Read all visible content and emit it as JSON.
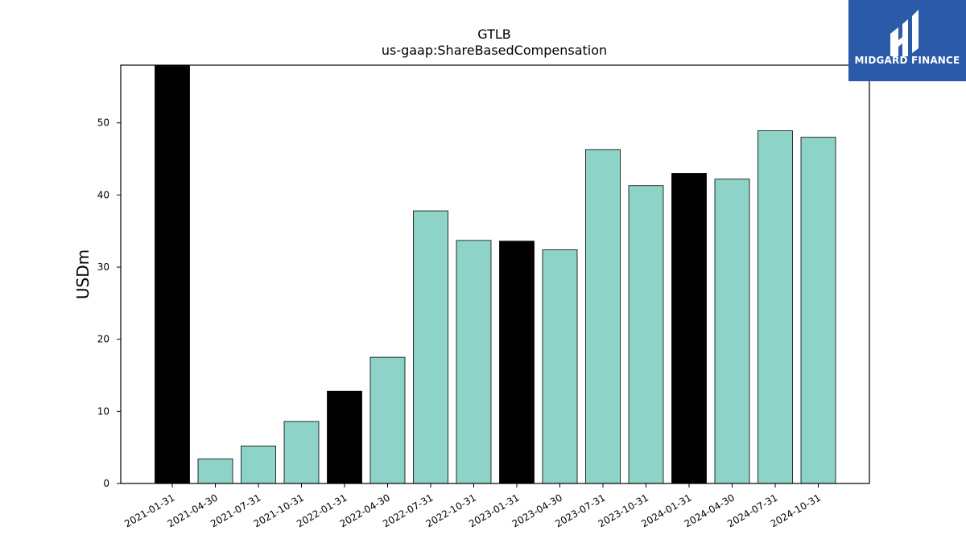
{
  "chart_data": {
    "type": "bar",
    "title": "GTLB",
    "subtitle": "us-gaap:ShareBasedCompensation",
    "ylabel": "USDm",
    "xlabel": "",
    "ylim": [
      0,
      58
    ],
    "yticks": [
      0,
      10,
      20,
      30,
      40,
      50
    ],
    "grid": false,
    "categories": [
      "2021-01-31",
      "2021-04-30",
      "2021-07-31",
      "2021-10-31",
      "2022-01-31",
      "2022-04-30",
      "2022-07-31",
      "2022-10-31",
      "2023-01-31",
      "2023-04-30",
      "2023-07-31",
      "2023-10-31",
      "2024-01-31",
      "2024-04-30",
      "2024-07-31",
      "2024-10-31"
    ],
    "values": [
      58.0,
      3.4,
      5.2,
      8.6,
      12.8,
      17.5,
      37.8,
      33.7,
      33.6,
      32.4,
      46.3,
      41.3,
      43.0,
      42.2,
      48.9,
      48.0
    ],
    "colors": [
      "#000000",
      "#8dd3c7",
      "#8dd3c7",
      "#8dd3c7",
      "#000000",
      "#8dd3c7",
      "#8dd3c7",
      "#8dd3c7",
      "#000000",
      "#8dd3c7",
      "#8dd3c7",
      "#8dd3c7",
      "#000000",
      "#8dd3c7",
      "#8dd3c7",
      "#8dd3c7"
    ]
  },
  "brand": {
    "name": "MIDGARD FINANCE",
    "color": "#2a5aa8"
  }
}
